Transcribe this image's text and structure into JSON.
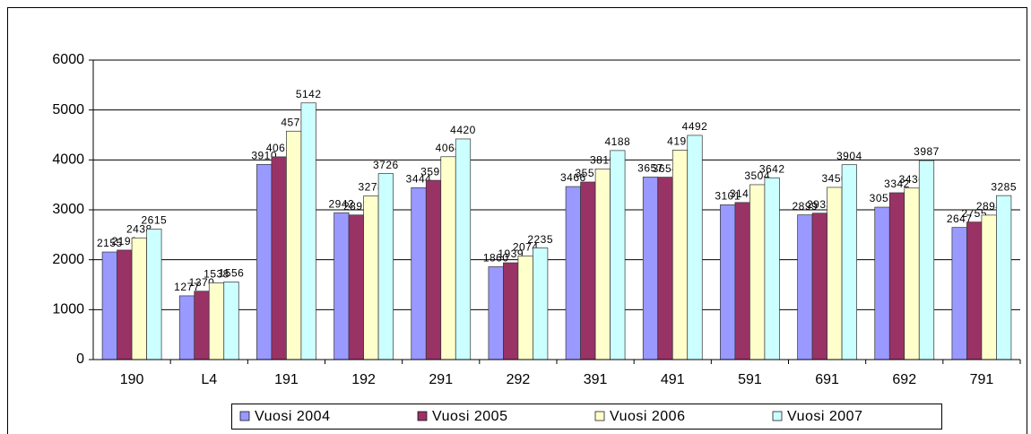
{
  "chart_data": {
    "type": "bar",
    "categories": [
      "190",
      "L4",
      "191",
      "192",
      "291",
      "292",
      "391",
      "491",
      "591",
      "691",
      "692",
      "791"
    ],
    "series": [
      {
        "name": "Vuosi 2004",
        "color": "#9999ff",
        "values": [
          2155,
          1277,
          3910,
          2942,
          3444,
          1860,
          3466,
          3657,
          3101,
          2899,
          3053,
          2647
        ]
      },
      {
        "name": "Vuosi 2005",
        "color": "#993366",
        "values": [
          2193,
          1370,
          4062,
          2897,
          3591,
          1939,
          3557,
          3654,
          3147,
          2933,
          3342,
          2755
        ]
      },
      {
        "name": "Vuosi 2006",
        "color": "#ffffcc",
        "values": [
          2438,
          1538,
          4576,
          3278,
          4064,
          2074,
          3819,
          4197,
          3504,
          3450,
          3436,
          2894
        ]
      },
      {
        "name": "Vuosi 2007",
        "color": "#ccffff",
        "values": [
          2615,
          1556,
          5142,
          3726,
          4420,
          2235,
          4188,
          4492,
          3642,
          3904,
          3987,
          3285
        ]
      }
    ],
    "ylim": [
      0,
      6000
    ],
    "yticks": [
      0,
      1000,
      2000,
      3000,
      4000,
      5000,
      6000
    ],
    "grid": true,
    "legend": "bottom"
  }
}
